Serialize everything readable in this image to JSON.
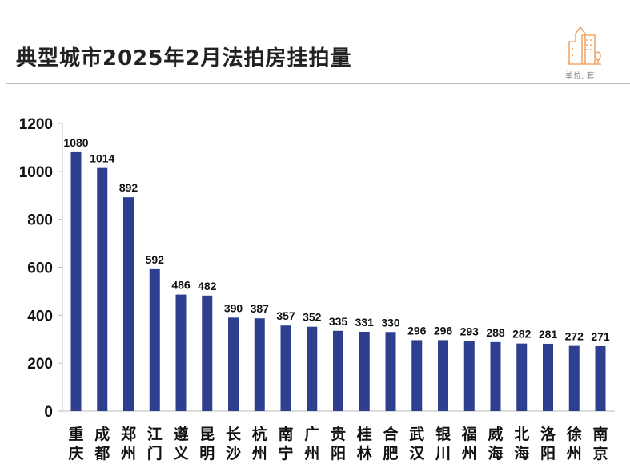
{
  "header": {
    "title": "典型城市2025年2月法拍房挂拍量",
    "unit": "单位: 套",
    "logo_icon": "city-buildings-icon",
    "logo_color": "#f0a86e"
  },
  "chart_data": {
    "type": "bar",
    "title": "典型城市2025年2月法拍房挂拍量",
    "categories": [
      "重庆",
      "成都",
      "郑州",
      "江门",
      "遵义",
      "昆明",
      "长沙",
      "杭州",
      "南宁",
      "广州",
      "贵阳",
      "桂林",
      "合肥",
      "武汉",
      "银川",
      "福州",
      "威海",
      "北海",
      "洛阳",
      "徐州",
      "南京"
    ],
    "values": [
      1080,
      1014,
      892,
      592,
      486,
      482,
      390,
      387,
      357,
      352,
      335,
      331,
      330,
      296,
      296,
      293,
      288,
      282,
      281,
      272,
      271
    ],
    "ylim": [
      0,
      1200
    ],
    "yticks": [
      0,
      200,
      400,
      600,
      800,
      1000,
      1200
    ],
    "grid": false,
    "data_labels": true,
    "bar_color": "#2e3f8f",
    "xlabel": "",
    "ylabel": ""
  }
}
